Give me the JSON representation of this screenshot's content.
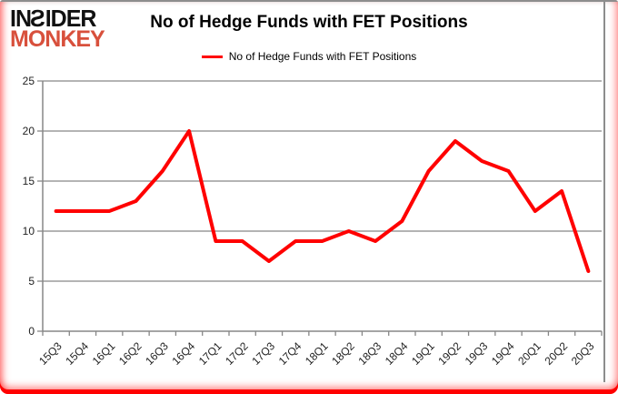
{
  "logo": {
    "line1": "INSIDER",
    "line2": "MONKEY",
    "accent_color": "#d8503c"
  },
  "header": {
    "title": "No of Hedge Funds with FET Positions"
  },
  "legend": {
    "label": "No of Hedge Funds with FET Positions",
    "line_color": "#ff0000"
  },
  "chart_data": {
    "type": "line",
    "title": "No of Hedge Funds with FET Positions",
    "categories": [
      "15Q3",
      "15Q4",
      "16Q1",
      "16Q2",
      "16Q3",
      "16Q4",
      "17Q1",
      "17Q2",
      "17Q3",
      "17Q4",
      "18Q1",
      "18Q2",
      "18Q3",
      "18Q4",
      "19Q1",
      "19Q2",
      "19Q3",
      "19Q4",
      "20Q1",
      "20Q2",
      "20Q3"
    ],
    "series": [
      {
        "name": "No of Hedge Funds with FET Positions",
        "color": "#ff0000",
        "values": [
          12,
          12,
          12,
          13,
          16,
          20,
          9,
          9,
          7,
          9,
          9,
          10,
          9,
          11,
          16,
          19,
          17,
          16,
          12,
          14,
          6
        ]
      }
    ],
    "xlabel": "",
    "ylabel": "",
    "ylim": [
      0,
      25
    ],
    "yticks": [
      0,
      5,
      10,
      15,
      20,
      25
    ],
    "grid": true,
    "grid_color": "#878787",
    "legend_position": "top"
  }
}
